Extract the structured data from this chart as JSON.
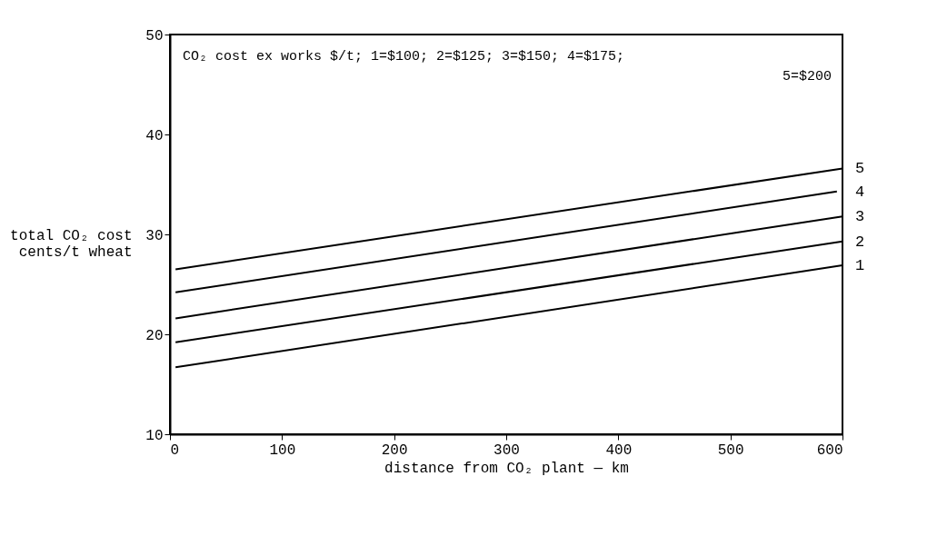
{
  "chart_data": {
    "type": "line",
    "xlabel": "distance from CO₂ plant — km",
    "ylabel": "total CO₂ cost cents/t wheat",
    "annotations": [
      "CO₂ cost ex works $/t; 1=$100; 2=$125; 3=$150; 4=$175;",
      "5=$200"
    ],
    "xlim": [
      0,
      600
    ],
    "xticks": [
      0,
      100,
      200,
      300,
      400,
      500,
      600
    ],
    "ylim": [
      10,
      50
    ],
    "yticks": [
      10,
      20,
      30,
      40,
      50
    ],
    "grid": false,
    "marker": "none",
    "line_style": "solid",
    "series": [
      {
        "name": "1",
        "color": "#000000",
        "x": [
          5,
          600
        ],
        "values": [
          16.7,
          26.9
        ]
      },
      {
        "name": "2",
        "color": "#000000",
        "x": [
          5,
          600
        ],
        "values": [
          19.2,
          29.3
        ]
      },
      {
        "name": "3",
        "color": "#000000",
        "x": [
          5,
          600
        ],
        "values": [
          21.6,
          31.8
        ]
      },
      {
        "name": "4",
        "color": "#000000",
        "x": [
          5,
          595
        ],
        "values": [
          24.2,
          34.3
        ]
      },
      {
        "name": "5",
        "color": "#000000",
        "x": [
          5,
          600
        ],
        "values": [
          26.5,
          36.6
        ]
      }
    ]
  }
}
